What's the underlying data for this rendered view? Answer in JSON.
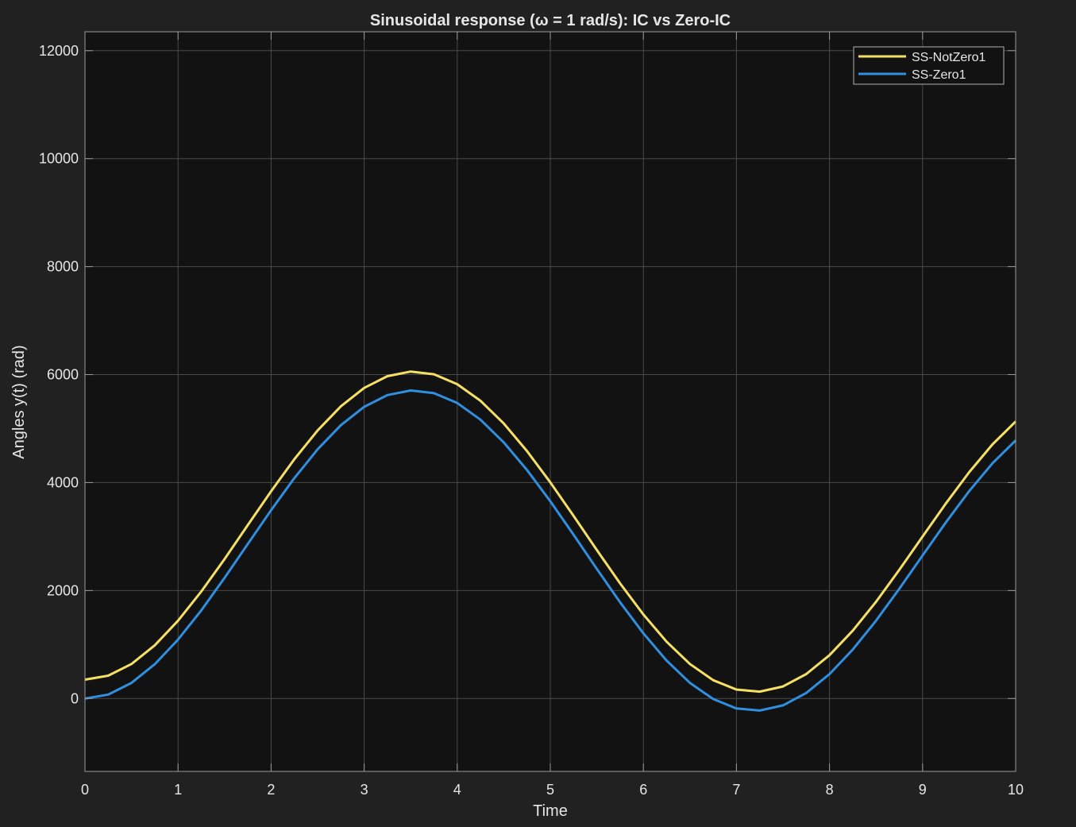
{
  "chart_data": {
    "type": "line",
    "title": "Sinusoidal response (ω = 1 rad/s): IC vs Zero-IC",
    "xlabel": "Time",
    "ylabel": "Angles y(t) (rad)",
    "xlim": [
      0,
      10
    ],
    "ylim": [
      -1350,
      12350
    ],
    "xticks": [
      0,
      1,
      2,
      3,
      4,
      5,
      6,
      7,
      8,
      9,
      10
    ],
    "xtick_labels": [
      "0",
      "1",
      "2",
      "3",
      "4",
      "5",
      "6",
      "7",
      "8",
      "9",
      "10"
    ],
    "yticks": [
      0,
      2000,
      4000,
      6000,
      8000,
      10000,
      12000
    ],
    "ytick_labels": [
      "0",
      "2000",
      "4000",
      "6000",
      "8000",
      "10000",
      "12000"
    ],
    "grid": true,
    "legend_position": "top-right",
    "series": [
      {
        "name": "SS-NotZero1",
        "color": "#f5e063",
        "x": [
          0,
          0.25,
          0.5,
          0.75,
          1,
          1.25,
          1.5,
          1.75,
          2,
          2.25,
          2.5,
          2.75,
          3,
          3.25,
          3.5,
          3.75,
          4,
          4.25,
          4.5,
          4.75,
          5,
          5.25,
          5.5,
          5.75,
          6,
          6.25,
          6.5,
          6.75,
          7,
          7.25,
          7.5,
          7.75,
          8,
          8.25,
          8.5,
          8.75,
          9,
          9.25,
          9.5,
          9.75,
          10
        ],
        "y": [
          350,
          423,
          639,
          985,
          1441,
          1983,
          2584,
          3213,
          3839,
          4433,
          4966,
          5413,
          5753,
          5971,
          6056,
          6006,
          5823,
          5514,
          5094,
          4582,
          4003,
          3383,
          2749,
          2131,
          1557,
          1052,
          640,
          340,
          166,
          127,
          223,
          452,
          803,
          1257,
          1792,
          2383,
          3000,
          3612,
          4190,
          4705,
          5130
        ]
      },
      {
        "name": "SS-Zero1",
        "color": "#2f8fe0",
        "x": [
          0,
          0.25,
          0.5,
          0.75,
          1,
          1.25,
          1.5,
          1.75,
          2,
          2.25,
          2.5,
          2.75,
          3,
          3.25,
          3.5,
          3.75,
          4,
          4.25,
          4.5,
          4.75,
          5,
          5.25,
          5.5,
          5.75,
          6,
          6.25,
          6.5,
          6.75,
          7,
          7.25,
          7.5,
          7.75,
          8,
          8.25,
          8.5,
          8.75,
          9,
          9.25,
          9.5,
          9.75,
          10
        ],
        "y": [
          0,
          73,
          289,
          635,
          1091,
          1633,
          2234,
          2863,
          3489,
          4083,
          4616,
          5063,
          5403,
          5621,
          5706,
          5656,
          5473,
          5164,
          4744,
          4232,
          3653,
          3033,
          2399,
          1781,
          1207,
          702,
          290,
          -10,
          -184,
          -223,
          -127,
          102,
          453,
          907,
          1442,
          2033,
          2650,
          3262,
          3840,
          4355,
          4780
        ]
      }
    ]
  }
}
